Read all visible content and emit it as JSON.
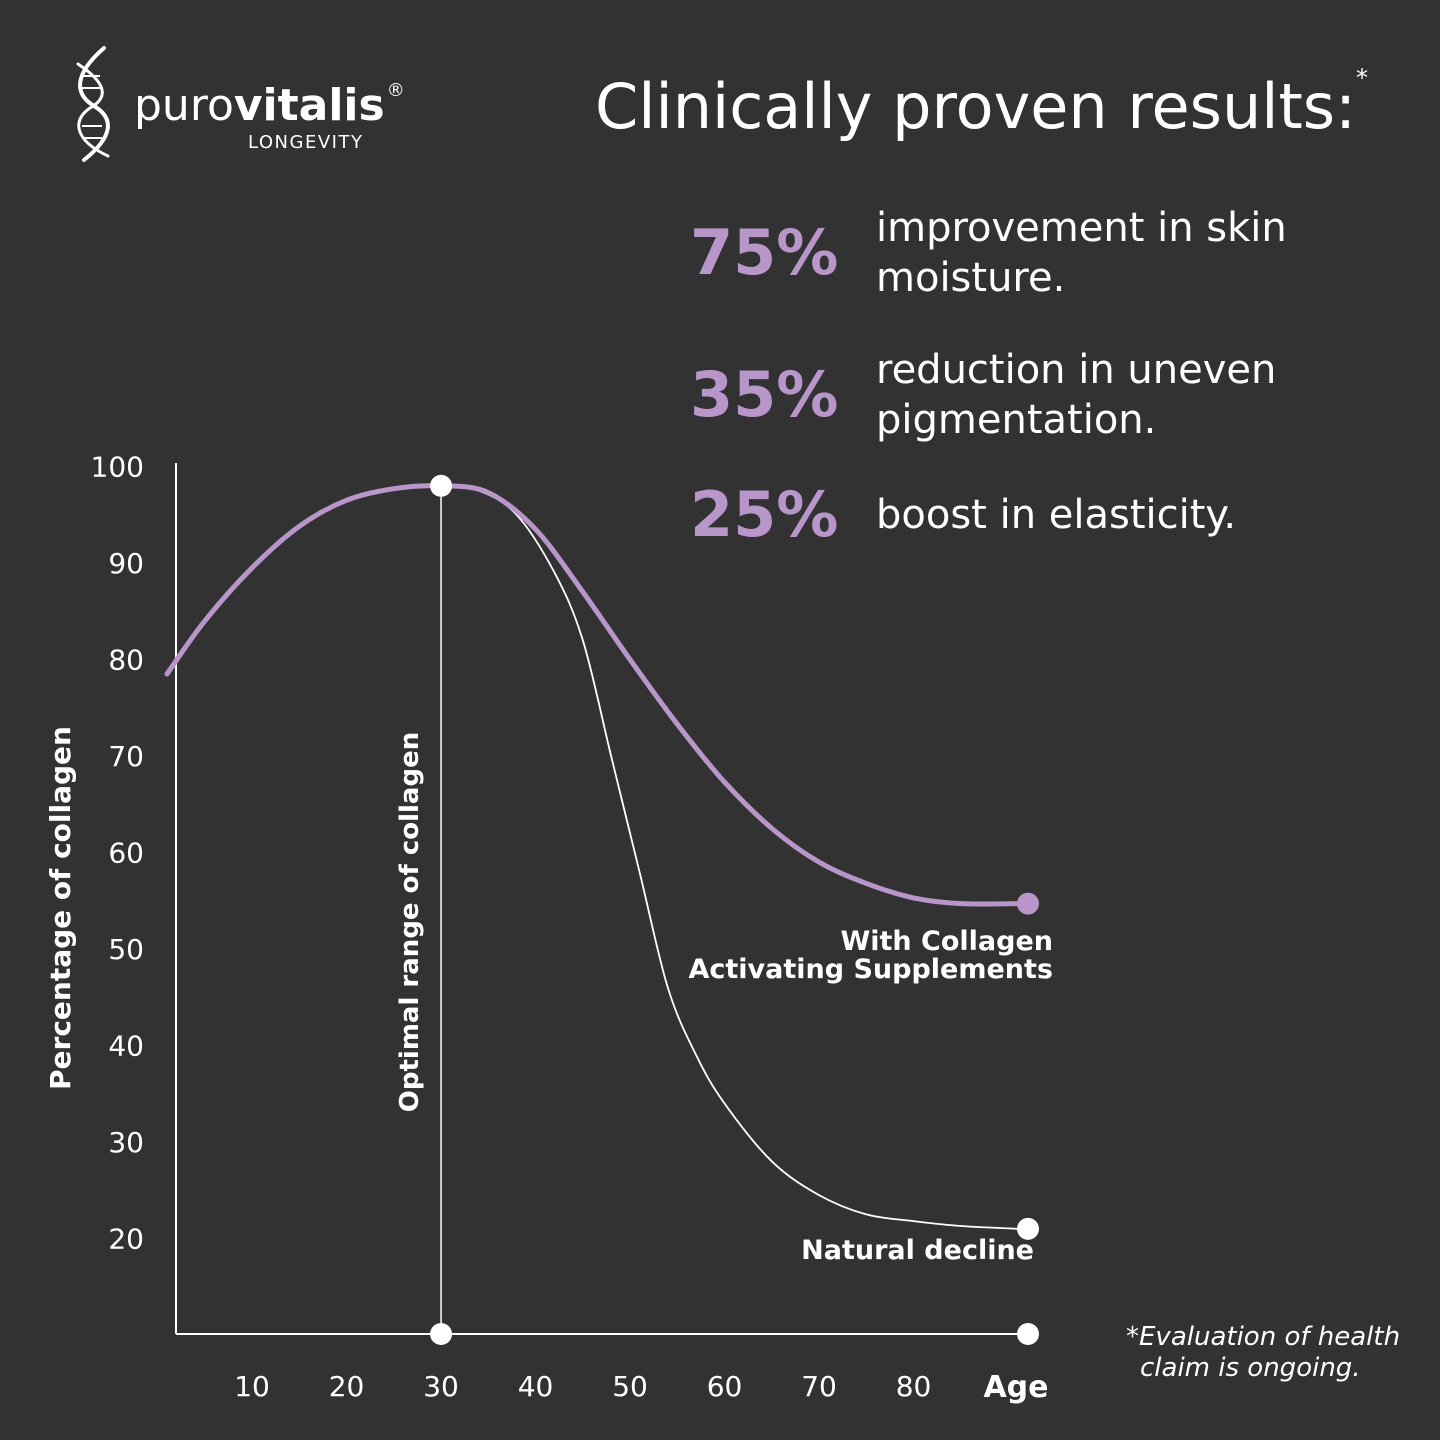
{
  "brand": {
    "name_light": "puro",
    "name_bold": "vitalis",
    "registered": "®",
    "tagline": "LONGEVITY",
    "icon": "dna-helix-icon"
  },
  "headline": {
    "text": "Clinically proven results:",
    "mark": "*"
  },
  "stats": [
    {
      "percent": "75%",
      "text": "improvement in skin moisture."
    },
    {
      "percent": "35%",
      "text": "reduction in uneven pigmentation."
    },
    {
      "percent": "25%",
      "text": "boost in elasticity."
    }
  ],
  "footnote": {
    "line1": "*Evaluation of health",
    "line2": "claim is ongoing."
  },
  "colors": {
    "background": "#333233",
    "accent": "#b896c9",
    "text": "#ffffff"
  },
  "chart_data": {
    "type": "line",
    "ylabel": "Percentage of collagen",
    "xlabel": "Age",
    "x_ticks": [
      10,
      20,
      30,
      40,
      50,
      60,
      70,
      80
    ],
    "y_ticks": [
      20,
      30,
      40,
      50,
      60,
      70,
      80,
      90,
      100
    ],
    "x_range": [
      1,
      91
    ],
    "y_range": [
      10,
      100
    ],
    "grid": false,
    "series": [
      {
        "name": "With Collagen Activating Supplements",
        "color": "#b896c9",
        "points": [
          [
            1,
            78.5
          ],
          [
            5,
            84
          ],
          [
            10,
            89.5
          ],
          [
            15,
            93.8
          ],
          [
            20,
            96.5
          ],
          [
            25,
            97.7
          ],
          [
            30,
            98
          ],
          [
            35,
            97.3
          ],
          [
            40,
            93.5
          ],
          [
            45,
            87
          ],
          [
            50,
            80
          ],
          [
            55,
            73.3
          ],
          [
            60,
            67.3
          ],
          [
            65,
            62.5
          ],
          [
            70,
            59
          ],
          [
            75,
            56.8
          ],
          [
            80,
            55.3
          ],
          [
            85,
            54.7
          ],
          [
            91,
            54.7
          ]
        ]
      },
      {
        "name": "Natural decline",
        "color": "#ffffff",
        "points": [
          [
            30,
            98
          ],
          [
            34,
            97.5
          ],
          [
            38,
            95
          ],
          [
            42,
            89
          ],
          [
            45,
            82
          ],
          [
            48,
            70
          ],
          [
            51,
            58
          ],
          [
            54,
            46
          ],
          [
            57,
            39
          ],
          [
            60,
            34
          ],
          [
            65,
            28
          ],
          [
            70,
            24.5
          ],
          [
            75,
            22.5
          ],
          [
            80,
            21.8
          ],
          [
            85,
            21.3
          ],
          [
            91,
            21
          ]
        ]
      }
    ],
    "annotations": [
      {
        "label": "Optimal range of collagen",
        "x": 30
      }
    ],
    "curve_labels": {
      "supplements_line1": "With Collagen",
      "supplements_line2": "Activating Supplements",
      "natural": "Natural decline"
    }
  }
}
